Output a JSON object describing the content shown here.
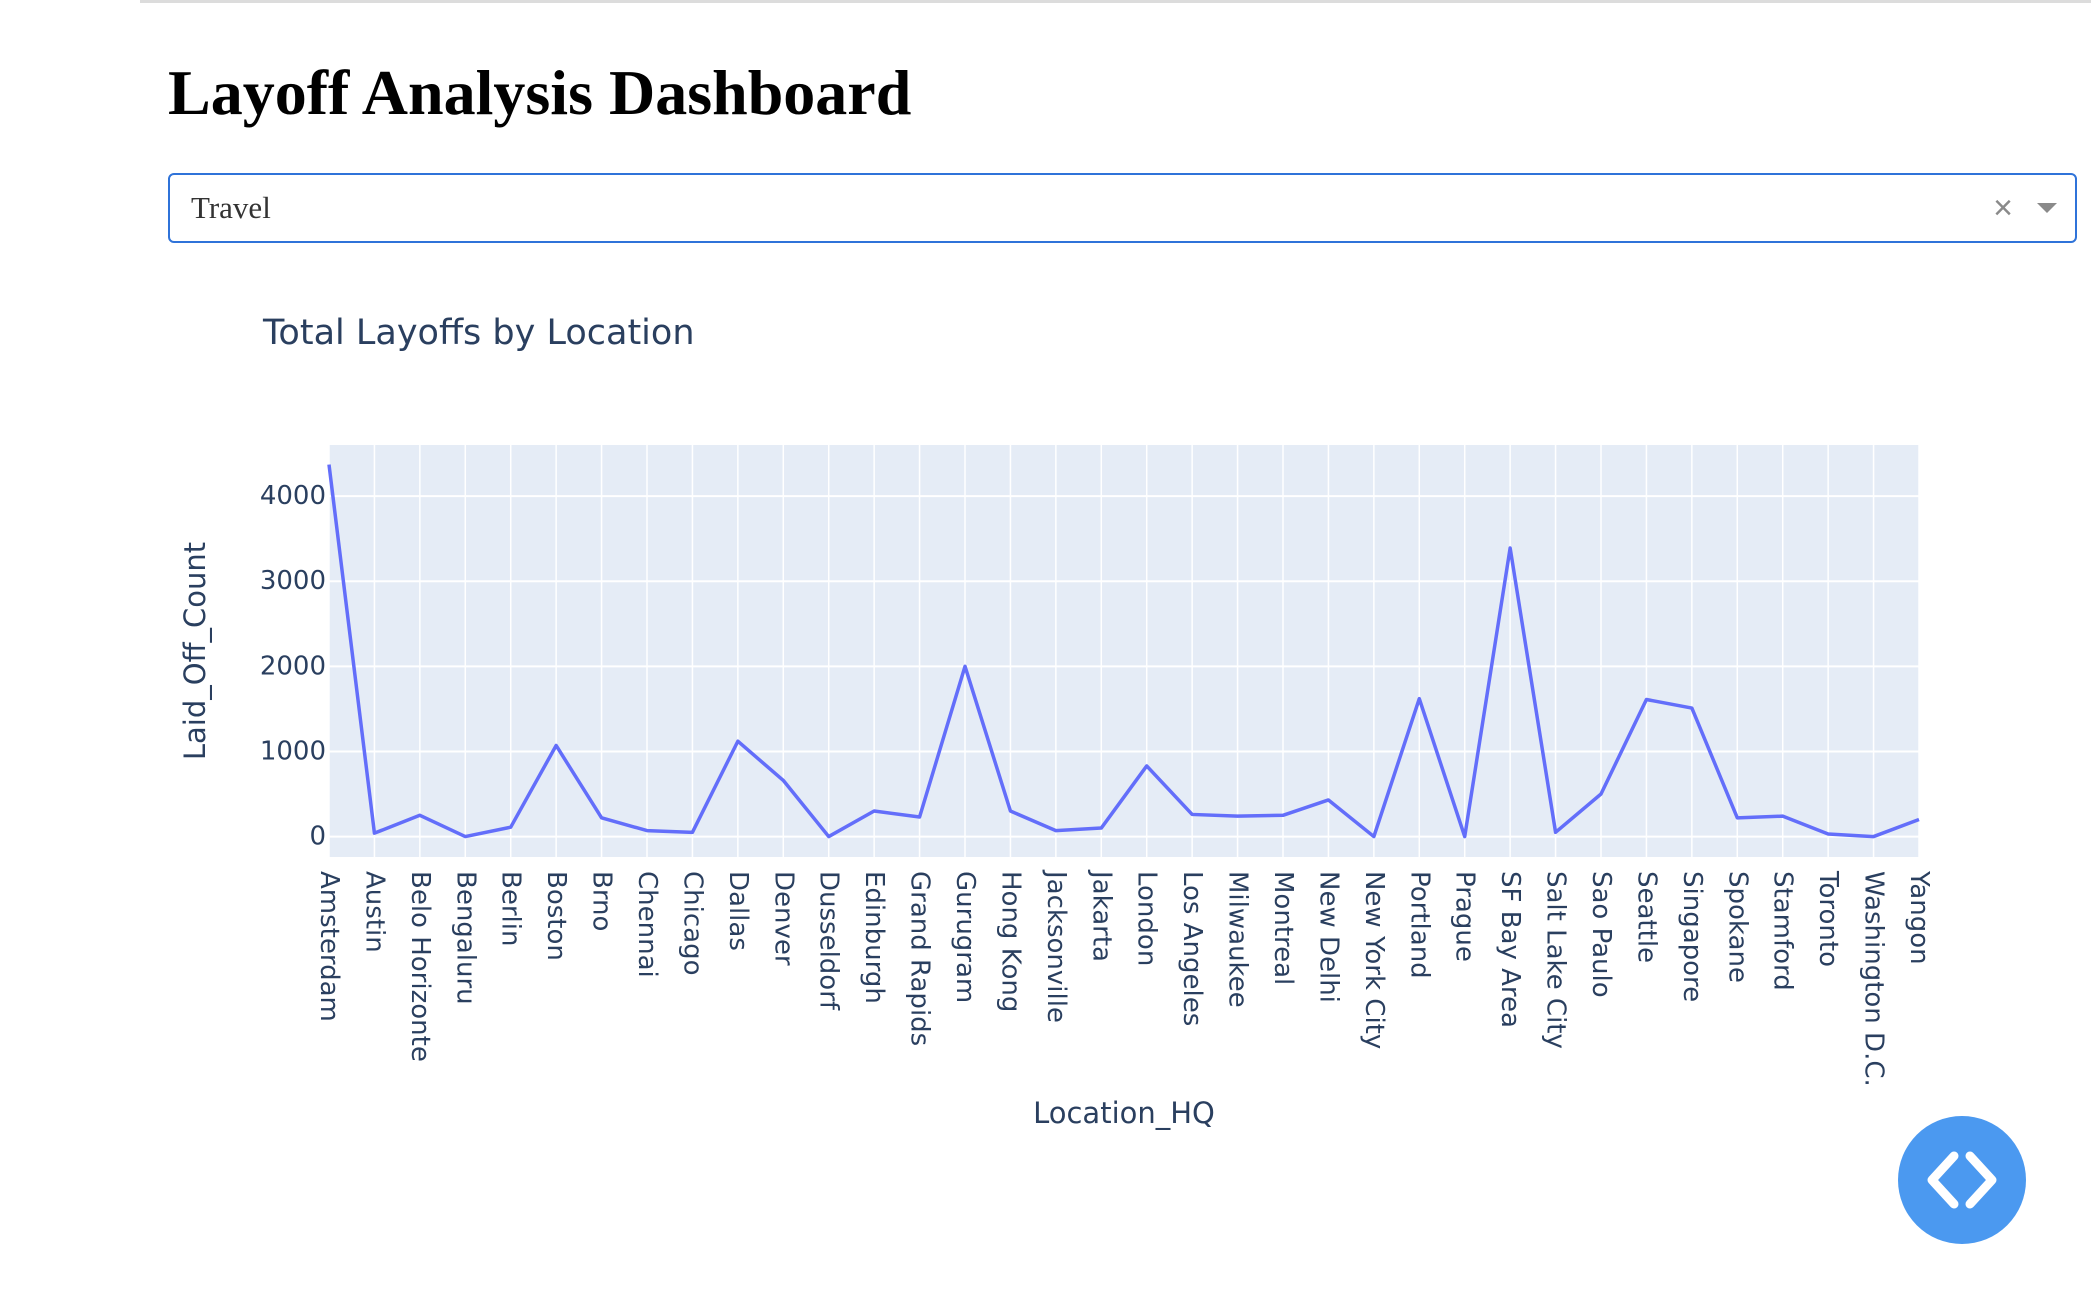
{
  "page": {
    "title": "Layoff Analysis Dashboard"
  },
  "filter": {
    "selected": "Travel",
    "clear_icon": "×"
  },
  "theme": {
    "line_color": "#636efa",
    "plot_bg": "#e5ecf6",
    "text_color": "#2a3f5f",
    "dropdown_border": "#2f73d9",
    "code_button_bg": "#4b99f0"
  },
  "code_button": {
    "icon": "code-icon"
  },
  "chart_data": {
    "type": "line",
    "title": "Total Layoffs by Location",
    "xlabel": "Location_HQ",
    "ylabel": "Laid_Off_Count",
    "ylim": [
      -240,
      4600
    ],
    "yticks": [
      0,
      1000,
      2000,
      3000,
      4000
    ],
    "grid": true,
    "categories": [
      "Amsterdam",
      "Austin",
      "Belo Horizonte",
      "Bengaluru",
      "Berlin",
      "Boston",
      "Brno",
      "Chennai",
      "Chicago",
      "Dallas",
      "Denver",
      "Dusseldorf",
      "Edinburgh",
      "Grand Rapids",
      "Gurugram",
      "Hong Kong",
      "Jacksonville",
      "Jakarta",
      "London",
      "Los Angeles",
      "Milwaukee",
      "Montreal",
      "New Delhi",
      "New York City",
      "Portland",
      "Prague",
      "SF Bay Area",
      "Salt Lake City",
      "Sao Paulo",
      "Seattle",
      "Singapore",
      "Spokane",
      "Stamford",
      "Toronto",
      "Washington D.C.",
      "Yangon"
    ],
    "values": [
      4370,
      40,
      250,
      0,
      110,
      1070,
      220,
      70,
      50,
      1120,
      660,
      0,
      300,
      230,
      2000,
      300,
      70,
      100,
      830,
      260,
      240,
      250,
      430,
      0,
      1620,
      0,
      3390,
      50,
      500,
      1610,
      1510,
      220,
      240,
      30,
      0,
      200
    ]
  }
}
